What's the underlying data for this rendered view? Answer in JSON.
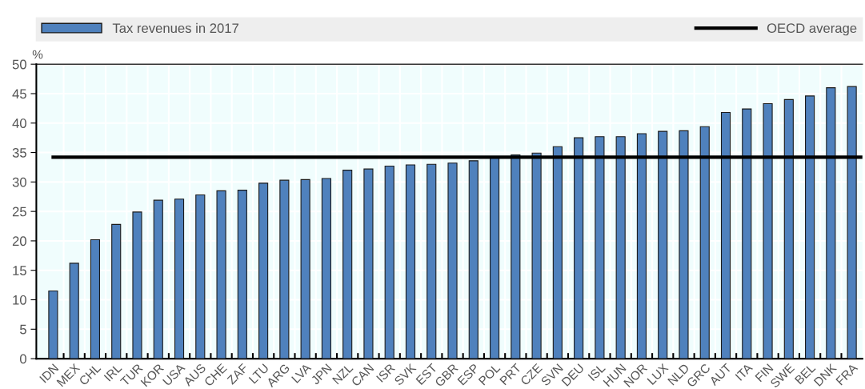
{
  "chart_data": {
    "type": "bar",
    "ylabel": "%",
    "categories": [
      "IDN",
      "MEX",
      "CHL",
      "IRL",
      "TUR",
      "KOR",
      "USA",
      "AUS",
      "CHE",
      "ZAF",
      "LTU",
      "ARG",
      "LVA",
      "JPN",
      "NZL",
      "CAN",
      "ISR",
      "SVK",
      "EST",
      "GBR",
      "ESP",
      "POL",
      "PRT",
      "CZE",
      "SVN",
      "DEU",
      "ISL",
      "HUN",
      "NOR",
      "LUX",
      "NLD",
      "GRC",
      "AUT",
      "ITA",
      "FIN",
      "SWE",
      "BEL",
      "DNK",
      "FRA"
    ],
    "series": [
      {
        "name": "Tax revenues in 2017",
        "color": "#4f81bd",
        "values": [
          11.5,
          16.2,
          20.2,
          22.8,
          24.9,
          26.9,
          27.1,
          27.8,
          28.5,
          28.6,
          29.8,
          30.3,
          30.4,
          30.6,
          32.0,
          32.2,
          32.7,
          32.9,
          33.0,
          33.2,
          33.6,
          34.1,
          34.6,
          34.9,
          36.0,
          37.5,
          37.7,
          37.7,
          38.2,
          38.6,
          38.7,
          39.4,
          41.8,
          42.4,
          43.3,
          44.0,
          44.6,
          46.0,
          46.2
        ]
      }
    ],
    "ref_lines": [
      {
        "axis": "y",
        "value": 34.2,
        "label": "OECD average",
        "color": "#000000",
        "line_style": "solid"
      }
    ],
    "ylim": [
      0,
      50
    ],
    "yticks": [
      0,
      5,
      10,
      15,
      20,
      25,
      30,
      35,
      40,
      45,
      50
    ],
    "grid": true,
    "legend": "top"
  }
}
